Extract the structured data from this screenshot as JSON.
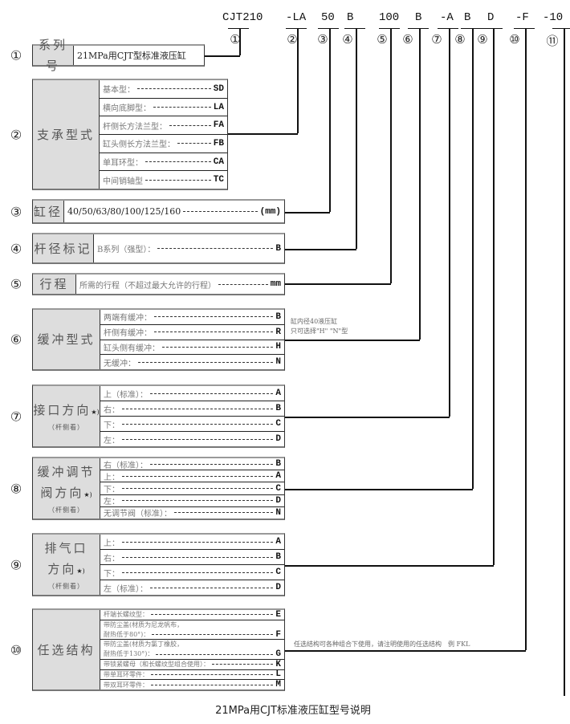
{
  "model_codes": [
    "CJT210",
    "-LA",
    "50",
    "B",
    "100",
    "B",
    "-A",
    "B",
    "D",
    "-F",
    "-10"
  ],
  "code_numbers": [
    "①",
    "②",
    "③",
    "④",
    "⑤",
    "⑥",
    "⑦",
    "⑧",
    "⑨",
    "⑩",
    "⑪"
  ],
  "sections": [
    {
      "num": "①",
      "title": [
        "系列号"
      ],
      "rows": [
        {
          "label": "21MPa用CJT型标准液压缸",
          "code": ""
        }
      ]
    },
    {
      "num": "②",
      "title": [
        "支承型式"
      ],
      "rows": [
        {
          "label": "基本型：",
          "code": "SD"
        },
        {
          "label": "横向底脚型：",
          "code": "LA"
        },
        {
          "label": "杆侧长方法兰型：",
          "code": "FA"
        },
        {
          "label": "缸头侧长方法兰型：",
          "code": "FB"
        },
        {
          "label": "单耳环型：",
          "code": "CA"
        },
        {
          "label": "中间销轴型",
          "code": "TC"
        }
      ]
    },
    {
      "num": "③",
      "title": [
        "缸径"
      ],
      "rows": [
        {
          "label": "40/50/63/80/100/125/160",
          "code": "(mm)"
        }
      ]
    },
    {
      "num": "④",
      "title": [
        "杆径标记"
      ],
      "rows": [
        {
          "label": "B系列（强型）：",
          "code": "B"
        }
      ]
    },
    {
      "num": "⑤",
      "title": [
        "行程"
      ],
      "rows": [
        {
          "label": "所需的行程（不超过最大允许的行程）",
          "code": "mm"
        }
      ]
    },
    {
      "num": "⑥",
      "title": [
        "缓冲型式"
      ],
      "rows": [
        {
          "label": "两端有缓冲：",
          "code": "B"
        },
        {
          "label": "杆侧有缓冲：",
          "code": "R"
        },
        {
          "label": "缸头侧有缓冲：",
          "code": "H"
        },
        {
          "label": "无缓冲：",
          "code": "N"
        }
      ]
    },
    {
      "num": "⑦",
      "title": [
        "接口方向"
      ],
      "star": "★)",
      "sub": "（杆侧看）",
      "rows": [
        {
          "label": "上（标准）：",
          "code": "A"
        },
        {
          "label": "右：",
          "code": "B"
        },
        {
          "label": "下：",
          "code": "C"
        },
        {
          "label": "左：",
          "code": "D"
        }
      ]
    },
    {
      "num": "⑧",
      "title": [
        "缓冲调节",
        "阀方向"
      ],
      "star": "★)",
      "sub": "（杆侧看）",
      "rows": [
        {
          "label": "右（标准）：",
          "code": "B"
        },
        {
          "label": "上：",
          "code": "A"
        },
        {
          "label": "下：",
          "code": "C"
        },
        {
          "label": "左：",
          "code": "D"
        },
        {
          "label": "无调节阀（标准）：",
          "code": "N"
        }
      ]
    },
    {
      "num": "⑨",
      "title": [
        "排气口",
        "方向"
      ],
      "star": "★)",
      "sub": "（杆侧看）",
      "rows": [
        {
          "label": "上：",
          "code": "A"
        },
        {
          "label": "右：",
          "code": "B"
        },
        {
          "label": "下：",
          "code": "C"
        },
        {
          "label": "左（标准）：",
          "code": "D"
        }
      ]
    },
    {
      "num": "⑩",
      "title": [
        "任选结构"
      ],
      "rows": [
        {
          "label": "杆端长螺纹型：",
          "code": "E"
        },
        {
          "label": "带防尘盖(材质为尼龙帆布，",
          "label2": "耐热低于80°)：",
          "code": "F"
        },
        {
          "label": "带防尘盖(材质为氯丁橡胶，",
          "label2": "耐热低于130°)：",
          "code": "G"
        },
        {
          "label": "带锁紧螺母（和长螺纹型组合使用）：",
          "code": "K"
        },
        {
          "label": "带单耳环零件：",
          "code": "L"
        },
        {
          "label": "带双耳环零件：",
          "code": "M"
        }
      ]
    }
  ],
  "notes": {
    "cushion": [
      "缸内径40液压缸",
      "只可选择\"H\" \"N\"型"
    ],
    "options": "任选结构可各种组合下使用，请注明使用的任选结构　例 FKL"
  },
  "caption": "21MPa用CJT标准液压缸型号说明"
}
